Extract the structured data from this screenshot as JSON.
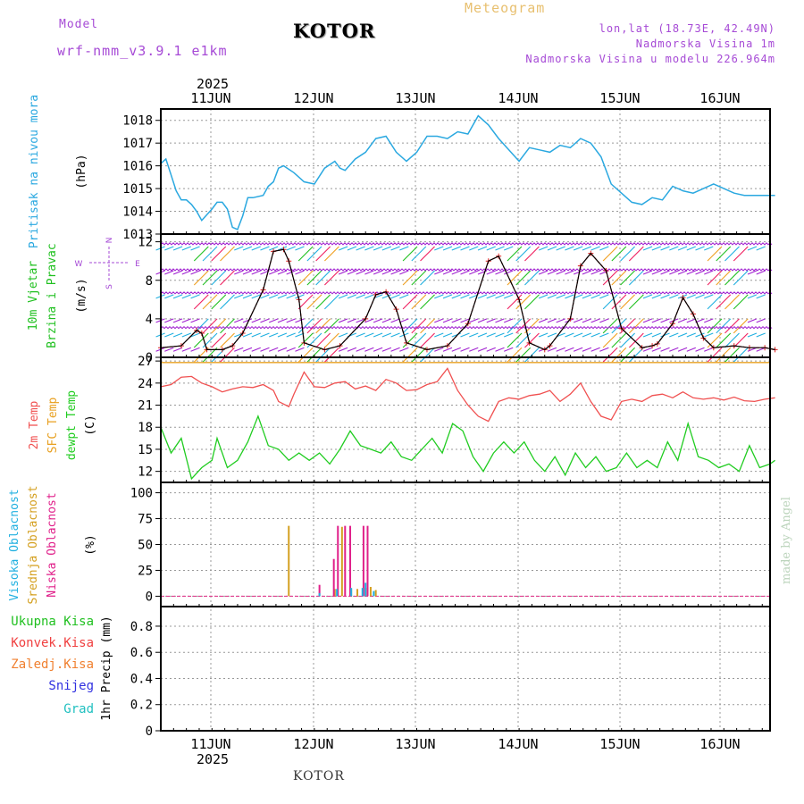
{
  "header": {
    "model_label": "Model",
    "model_name": "wrf-nmm_v3.9.1 e1km",
    "title": "KOTOR",
    "meteogram_label": "Meteogram",
    "location": "lon,lat (18.73E, 42.49N)",
    "elevation": "Nadmorska Visina 1m",
    "model_elevation": "Nadmorska Visina u modelu 226.964m"
  },
  "footer": {
    "station": "KOTOR"
  },
  "signature": "made by Angel",
  "time_axis": {
    "year": "2025",
    "day_labels": [
      "11JUN",
      "12JUN",
      "13JUN",
      "14JUN",
      "15JUN",
      "16JUN"
    ]
  },
  "colors": {
    "pressure": "#2aa8e0",
    "temp_2m": "#f05050",
    "sfc_temp": "#e8a020",
    "dewpoint": "#20cc20",
    "high_cloud": "#20b0e0",
    "mid_cloud": "#d4a020",
    "low_cloud": "#e0208a",
    "wind_speed_line": "#000000",
    "wind_marks": "#e02020",
    "grid": "#999999"
  },
  "chart_data": [
    {
      "type": "line",
      "name": "pressure",
      "ylabel_lines": [
        "Pritisak na nivou mora",
        "(hPa)"
      ],
      "ylim": [
        1013,
        1018.5
      ],
      "yticks": [
        1013,
        1014,
        1015,
        1016,
        1017,
        1018
      ],
      "series": [
        {
          "key": "pressure",
          "x_day_offset": [
            0,
            0.05,
            0.1,
            0.15,
            0.2,
            0.25,
            0.3,
            0.35,
            0.4,
            0.5,
            0.55,
            0.6,
            0.65,
            0.7,
            0.75,
            0.8,
            0.85,
            0.9,
            1.0,
            1.05,
            1.1,
            1.15,
            1.2,
            1.3,
            1.4,
            1.5,
            1.6,
            1.7,
            1.75,
            1.8,
            1.9,
            2.0,
            2.1,
            2.2,
            2.3,
            2.4,
            2.5,
            2.6,
            2.7,
            2.8,
            2.9,
            3.0,
            3.1,
            3.2,
            3.3,
            3.4,
            3.5,
            3.6,
            3.7,
            3.8,
            3.9,
            4.0,
            4.1,
            4.2,
            4.3,
            4.4,
            4.5,
            4.6,
            4.7,
            4.8,
            4.9,
            5.0,
            5.1,
            5.2,
            5.3,
            5.4,
            5.5,
            5.6,
            5.7,
            5.8,
            5.9,
            6.0
          ],
          "values": [
            1016.1,
            1016.3,
            1015.6,
            1014.9,
            1014.5,
            1014.5,
            1014.3,
            1014.0,
            1013.6,
            1014.1,
            1014.4,
            1014.4,
            1014.1,
            1013.3,
            1013.2,
            1013.8,
            1014.6,
            1014.6,
            1014.7,
            1015.1,
            1015.3,
            1015.9,
            1016.0,
            1015.7,
            1015.3,
            1015.2,
            1015.9,
            1016.2,
            1015.9,
            1015.8,
            1016.3,
            1016.6,
            1017.2,
            1017.3,
            1016.6,
            1016.2,
            1016.6,
            1017.3,
            1017.3,
            1017.2,
            1017.5,
            1017.4,
            1018.2,
            1017.8,
            1017.2,
            1016.7,
            1016.2,
            1016.8,
            1016.7,
            1016.6,
            1016.9,
            1016.8,
            1017.2,
            1017.0,
            1016.4,
            1015.2,
            1014.8,
            1014.4,
            1014.3,
            1014.6,
            1014.5,
            1015.1,
            1014.9,
            1014.8,
            1015.0,
            1015.2,
            1015.0,
            1014.8,
            1014.7,
            1014.7,
            1014.7,
            1014.7
          ]
        }
      ]
    },
    {
      "type": "line",
      "name": "wind",
      "ylabel_lines": [
        "10m Vjetar",
        "Brzina i Pravac",
        "(m/s)"
      ],
      "compass_labels": [
        "N",
        "S",
        "E",
        "W"
      ],
      "ylim": [
        0,
        12.8
      ],
      "yticks": [
        0,
        4,
        8,
        12
      ],
      "series": [
        {
          "key": "wind_speed",
          "x_day_offset": [
            0,
            0.2,
            0.35,
            0.4,
            0.45,
            0.6,
            0.7,
            0.8,
            1.0,
            1.1,
            1.2,
            1.25,
            1.35,
            1.4,
            1.6,
            1.75,
            2.0,
            2.1,
            2.2,
            2.3,
            2.4,
            2.6,
            2.8,
            3.0,
            3.2,
            3.3,
            3.5,
            3.6,
            3.75,
            3.8,
            4.0,
            4.1,
            4.2,
            4.35,
            4.5,
            4.7,
            4.8,
            4.85,
            5.0,
            5.1,
            5.2,
            5.3,
            5.4,
            5.6,
            5.75,
            5.9,
            6.0
          ],
          "values": [
            1.0,
            1.2,
            2.8,
            2.5,
            0.8,
            0.8,
            1.2,
            2.5,
            7.0,
            11.0,
            11.2,
            10.0,
            6.0,
            1.5,
            0.8,
            1.2,
            4.0,
            6.5,
            6.8,
            5.0,
            1.5,
            0.8,
            1.2,
            3.5,
            10.0,
            10.5,
            6.0,
            1.5,
            0.8,
            1.2,
            4.0,
            9.5,
            10.8,
            9.0,
            3.0,
            1.0,
            1.2,
            1.4,
            3.5,
            6.2,
            4.5,
            2.0,
            1.0,
            1.2,
            1.0,
            1.0,
            0.8
          ]
        }
      ]
    },
    {
      "type": "line",
      "name": "temperature",
      "ylabel_lines": [
        "2m Temp",
        "SFC Temp",
        "dewpt Temp",
        "(C)"
      ],
      "ylim": [
        10.5,
        27.5
      ],
      "yticks": [
        12,
        15,
        18,
        21,
        24,
        27
      ],
      "series": [
        {
          "key": "temp_2m",
          "x_day_offset": [
            0,
            0.1,
            0.2,
            0.3,
            0.4,
            0.5,
            0.6,
            0.7,
            0.8,
            0.9,
            1.0,
            1.1,
            1.15,
            1.25,
            1.3,
            1.4,
            1.5,
            1.6,
            1.7,
            1.8,
            1.9,
            2.0,
            2.1,
            2.2,
            2.3,
            2.4,
            2.5,
            2.6,
            2.7,
            2.8,
            2.9,
            3.0,
            3.1,
            3.2,
            3.3,
            3.4,
            3.5,
            3.6,
            3.7,
            3.8,
            3.9,
            4.0,
            4.1,
            4.2,
            4.3,
            4.4,
            4.5,
            4.6,
            4.7,
            4.8,
            4.9,
            5.0,
            5.1,
            5.2,
            5.3,
            5.4,
            5.5,
            5.6,
            5.7,
            5.8,
            5.9,
            6.0
          ],
          "values": [
            23.5,
            23.8,
            24.8,
            24.9,
            24.0,
            23.5,
            22.8,
            23.2,
            23.5,
            23.4,
            23.8,
            23.0,
            21.5,
            20.8,
            22.5,
            25.5,
            23.5,
            23.4,
            24.0,
            24.2,
            23.2,
            23.6,
            23.0,
            24.5,
            24.0,
            23.0,
            23.1,
            23.8,
            24.2,
            26.0,
            23.0,
            21.0,
            19.5,
            18.8,
            21.5,
            22.0,
            21.8,
            22.3,
            22.5,
            23.0,
            21.5,
            22.5,
            24.0,
            21.5,
            19.5,
            19.0,
            21.5,
            21.8,
            21.5,
            22.3,
            22.5,
            22.0,
            22.8,
            22.0,
            21.8,
            22.0,
            21.7,
            22.1,
            21.6,
            21.5,
            21.8,
            22.0
          ]
        },
        {
          "key": "sfc_temp",
          "x_day_offset": [
            0,
            6.0
          ],
          "values": [
            26.8,
            26.8
          ]
        },
        {
          "key": "dewpoint",
          "x_day_offset": [
            0,
            0.1,
            0.2,
            0.3,
            0.4,
            0.5,
            0.55,
            0.65,
            0.75,
            0.85,
            0.95,
            1.05,
            1.15,
            1.25,
            1.35,
            1.45,
            1.55,
            1.65,
            1.75,
            1.85,
            1.95,
            2.05,
            2.15,
            2.25,
            2.35,
            2.45,
            2.55,
            2.65,
            2.75,
            2.85,
            2.95,
            3.05,
            3.15,
            3.25,
            3.35,
            3.45,
            3.55,
            3.65,
            3.75,
            3.85,
            3.95,
            4.05,
            4.15,
            4.25,
            4.35,
            4.45,
            4.55,
            4.65,
            4.75,
            4.85,
            4.95,
            5.05,
            5.15,
            5.25,
            5.35,
            5.45,
            5.55,
            5.65,
            5.75,
            5.85,
            5.95,
            6.0
          ],
          "values": [
            18.0,
            14.5,
            16.5,
            11.0,
            12.5,
            13.5,
            16.5,
            12.5,
            13.5,
            16.0,
            19.5,
            15.5,
            15.0,
            13.5,
            14.5,
            13.5,
            14.5,
            13.0,
            15.0,
            17.5,
            15.5,
            15.0,
            14.5,
            16.0,
            14.0,
            13.5,
            15.0,
            16.5,
            14.5,
            18.5,
            17.5,
            14.0,
            12.0,
            14.5,
            16.0,
            14.5,
            16.0,
            13.5,
            12.0,
            14.0,
            11.5,
            14.5,
            12.5,
            14.0,
            12.0,
            12.5,
            14.5,
            12.5,
            13.5,
            12.5,
            16.0,
            13.5,
            18.5,
            14.0,
            13.5,
            12.5,
            13.0,
            12.0,
            15.5,
            12.5,
            13.0,
            13.5
          ]
        }
      ]
    },
    {
      "type": "bar",
      "name": "cloud_cover",
      "ylabel_lines": [
        "Visoka Oblacnost",
        "Srednja Oblacnost",
        "Niska Oblacnost",
        "(%)"
      ],
      "ylim": [
        -10,
        110
      ],
      "yticks": [
        0,
        25,
        50,
        75,
        100
      ],
      "series": [
        {
          "key": "mid_cloud",
          "x_day_offset": [
            1.25,
            1.7,
            1.77,
            1.86,
            1.92,
            2.0,
            2.05,
            2.1
          ],
          "values": [
            68,
            7,
            67,
            7,
            7,
            8,
            9,
            6
          ]
        },
        {
          "key": "low_cloud",
          "x_day_offset": [
            1.55,
            1.69,
            1.73,
            1.8,
            1.85,
            1.98,
            2.02
          ],
          "values": [
            11,
            36,
            68,
            68,
            68,
            68,
            68
          ]
        },
        {
          "key": "high_cloud",
          "x_day_offset": [
            1.55,
            1.72,
            1.86,
            1.97,
            2.0,
            2.08
          ],
          "values": [
            3,
            7,
            8,
            8,
            13,
            5
          ]
        }
      ]
    },
    {
      "type": "bar",
      "name": "precipitation",
      "ylabel_lines": [
        "1hr Precip (mm)"
      ],
      "legend": [
        "Ukupna Kisa",
        "Konvek.Kisa",
        "Zaledj.Kisa",
        "Snijeg",
        "Grad"
      ],
      "legend_colors": [
        "#20c020",
        "#f04040",
        "#f08030",
        "#3030e0",
        "#20c0c0"
      ],
      "ylim": [
        0,
        0.95
      ],
      "yticks": [
        0,
        0.2,
        0.4,
        0.6,
        0.8
      ],
      "series": [
        {
          "key": "total_rain",
          "x_day_offset": [],
          "values": []
        }
      ]
    }
  ]
}
